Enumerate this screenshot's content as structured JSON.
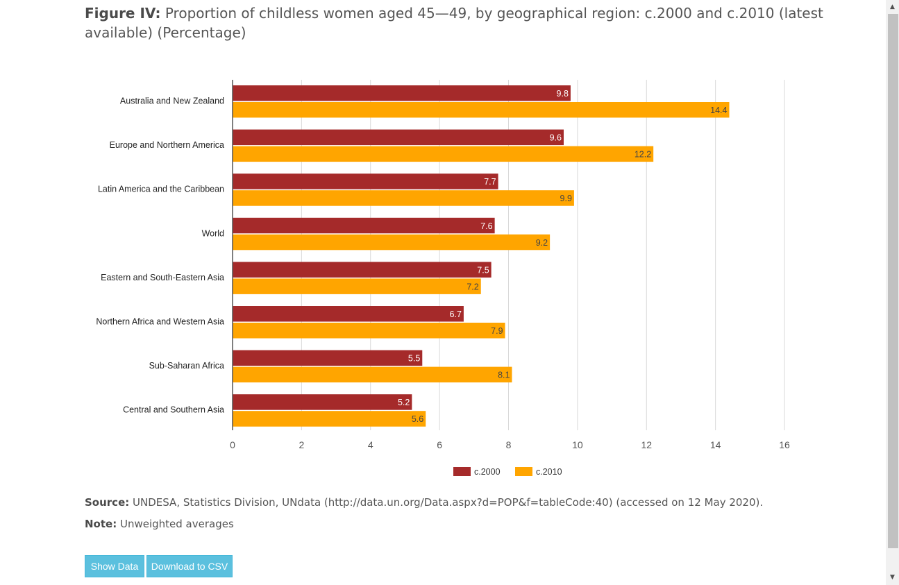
{
  "figure": {
    "label": "Figure IV:",
    "title": "Proportion of childless women aged 45—49, by geographical region: c.2000 and c.2010 (latest available) (Percentage)"
  },
  "chart_data": {
    "type": "bar",
    "orientation": "horizontal",
    "categories": [
      "Australia and New Zealand",
      "Europe and Northern America",
      "Latin America and the Caribbean",
      "World",
      "Eastern and South-Eastern Asia",
      "Northern Africa and Western Asia",
      "Sub-Saharan Africa",
      "Central and Southern Asia"
    ],
    "series": [
      {
        "name": "c.2000",
        "color": "#a52a2a",
        "values": [
          9.8,
          9.6,
          7.7,
          7.6,
          7.5,
          6.7,
          5.5,
          5.2
        ]
      },
      {
        "name": "c.2010",
        "color": "#ffa500",
        "values": [
          14.4,
          12.2,
          9.9,
          9.2,
          7.2,
          7.9,
          8.1,
          5.6
        ]
      }
    ],
    "xlim": [
      0,
      16
    ],
    "ticks": [
      "0",
      "2",
      "4",
      "6",
      "8",
      "10",
      "12",
      "14",
      "16"
    ],
    "grid": true,
    "legend_position": "bottom"
  },
  "source": {
    "label": "Source:",
    "text": "UNDESA, Statistics Division, UNdata (http://data.un.org/Data.aspx?d=POP&f=tableCode:40) (accessed on 12 May 2020)."
  },
  "note": {
    "label": "Note:",
    "text": "Unweighted averages"
  },
  "buttons": {
    "show_data": "Show Data",
    "download_csv": "Download to CSV"
  },
  "scrollbar": {
    "up_icon": "triangle-up-icon",
    "down_icon": "triangle-down-icon"
  }
}
